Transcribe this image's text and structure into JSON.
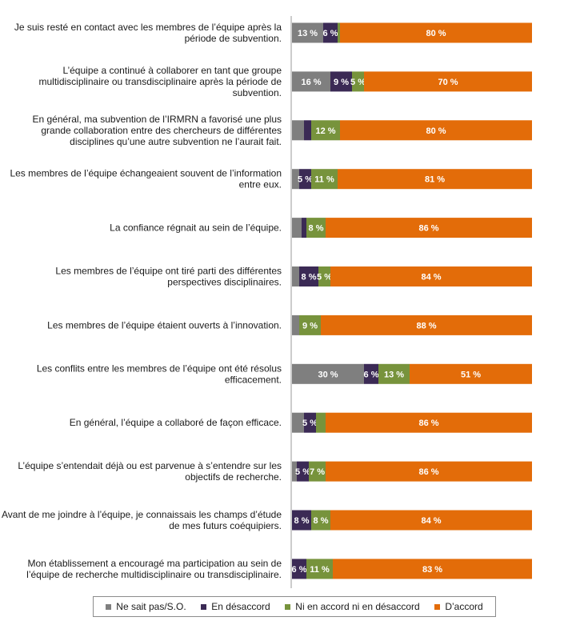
{
  "chart_data": {
    "type": "bar",
    "orientation": "horizontal",
    "stacked": true,
    "percent_scale": true,
    "legend_position": "bottom",
    "grid": false,
    "xlim": [
      0,
      100
    ],
    "categories": [
      [
        "Je suis resté en contact avec les membres de l’équipe après la",
        "période de subvention."
      ],
      [
        "L’équipe a continué à collaborer en tant que groupe",
        "multidisciplinaire ou transdisciplinaire après la période de",
        "subvention."
      ],
      [
        "En général, ma subvention de l’IRMRN a favorisé une plus",
        "grande collaboration entre des chercheurs de différentes",
        "disciplines qu’une autre subvention ne l’aurait fait."
      ],
      [
        "Les membres de l’équipe échangeaient souvent de l’information",
        "entre eux."
      ],
      [
        "La confiance régnait au sein de l’équipe."
      ],
      [
        "Les membres de l’équipe ont tiré parti des différentes",
        "perspectives disciplinaires."
      ],
      [
        "Les membres de l’équipe étaient ouverts à l’innovation."
      ],
      [
        "Les conflits entre les membres de l’équipe ont été résolus",
        "efficacement."
      ],
      [
        "En général, l’équipe a collaboré de façon efficace."
      ],
      [
        "L’équipe s’entendait déjà ou est parvenue à s’entendre sur les",
        "objectifs de recherche."
      ],
      [
        "Avant de me joindre à l’équipe, je connaissais les champs d’étude",
        "de mes futurs coéquipiers."
      ],
      [
        "Mon établissement a encouragé ma participation au sein de",
        "l’équipe de recherche multidisciplinaire ou transdisciplinaire."
      ]
    ],
    "series": [
      {
        "name": "Ne sait pas/S.O.",
        "color": "#7f7f7f",
        "values": [
          13,
          16,
          5,
          3,
          4,
          3,
          3,
          30,
          5,
          2,
          0,
          0
        ],
        "labels": [
          "13 %",
          "16 %",
          "",
          "",
          "",
          "",
          "",
          "30 %",
          "",
          "",
          "",
          ""
        ]
      },
      {
        "name": "En désaccord",
        "color": "#3b2a55",
        "values": [
          6,
          9,
          3,
          5,
          2,
          8,
          0,
          6,
          5,
          5,
          8,
          6
        ],
        "labels": [
          "6 %",
          "9 %",
          "",
          "5 %",
          "",
          "8 %",
          "",
          "6 %",
          "5 %",
          "5 %",
          "8 %",
          "6 %"
        ]
      },
      {
        "name": "Ni en accord ni en désaccord",
        "color": "#77933c",
        "values": [
          1,
          5,
          12,
          11,
          8,
          5,
          9,
          13,
          4,
          7,
          8,
          11
        ],
        "labels": [
          "",
          "5 %",
          "12 %",
          "11 %",
          "8 %",
          "5 %",
          "9 %",
          "13 %",
          "",
          "7 %",
          "8 %",
          "11 %"
        ]
      },
      {
        "name": "D’accord",
        "color": "#e36c09",
        "values": [
          80,
          70,
          80,
          81,
          86,
          84,
          88,
          51,
          86,
          86,
          84,
          83
        ],
        "labels": [
          "80 %",
          "70 %",
          "80 %",
          "81 %",
          "86 %",
          "84 %",
          "88 %",
          "51 %",
          "86 %",
          "86 %",
          "84 %",
          "83 %"
        ]
      }
    ]
  }
}
